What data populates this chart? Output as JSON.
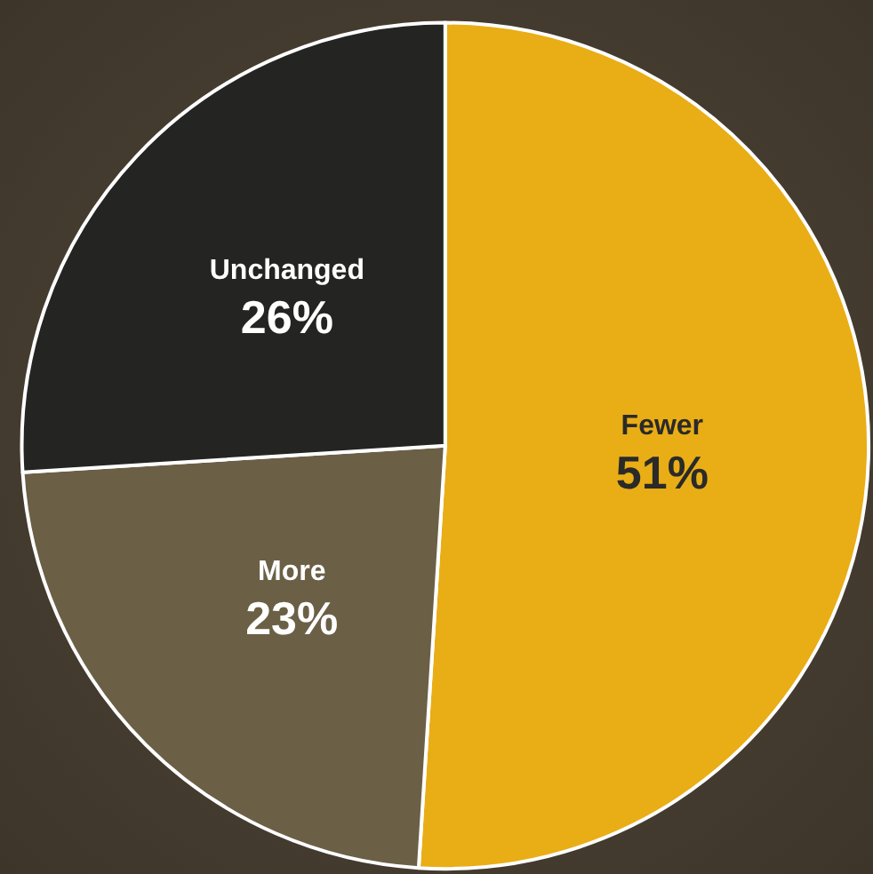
{
  "chart_data": {
    "type": "pie",
    "categories": [
      "Fewer",
      "More",
      "Unchanged"
    ],
    "values": [
      51,
      23,
      26
    ],
    "colors": [
      "#e9ad16",
      "#6b5f46",
      "#242422"
    ],
    "value_labels": [
      "51%",
      "23%",
      "26%"
    ],
    "legend": false
  }
}
